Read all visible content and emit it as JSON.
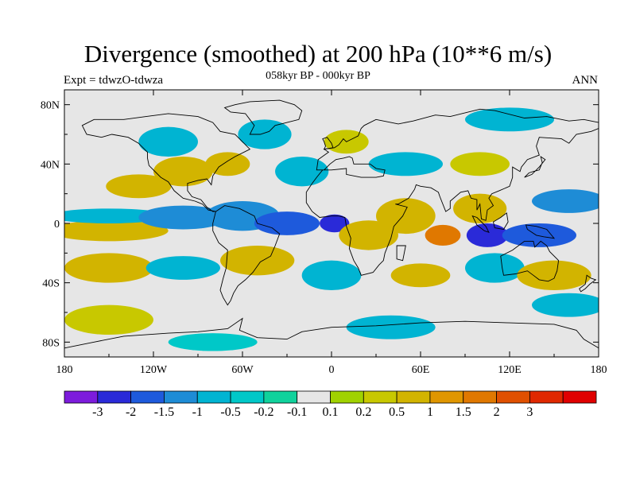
{
  "title": "Divergence (smoothed) at 200 hPa (10**6 m/s)",
  "subtitle": "058kyr BP - 000kyr BP",
  "experiment": "Expt = tdwzO-tdwza",
  "season": "ANN",
  "map": {
    "projection": "cylindrical equidistant",
    "lon_range": [
      -180,
      180
    ],
    "lat_range": [
      -90,
      90
    ],
    "land_background": "#e6e6e6",
    "coastlines": true,
    "lat_ticks": [
      {
        "value": 80,
        "label": "80N"
      },
      {
        "value": 40,
        "label": "40N"
      },
      {
        "value": 0,
        "label": "0"
      },
      {
        "value": -40,
        "label": "40S"
      },
      {
        "value": -80,
        "label": "80S"
      }
    ],
    "lon_ticks": [
      {
        "value": -180,
        "label": "180"
      },
      {
        "value": -120,
        "label": "120W"
      },
      {
        "value": -60,
        "label": "60W"
      },
      {
        "value": 0,
        "label": "0"
      },
      {
        "value": 60,
        "label": "60E"
      },
      {
        "value": 120,
        "label": "120E"
      },
      {
        "value": 180,
        "label": "180"
      }
    ]
  },
  "colorbar": {
    "colors": [
      "#7d1cdc",
      "#2a2ad8",
      "#1e5adc",
      "#1e8cd6",
      "#00b4d2",
      "#00c8c8",
      "#10d29c",
      "#e6e6e6",
      "#a0d200",
      "#c8c800",
      "#d2b400",
      "#e09600",
      "#e07800",
      "#e05000",
      "#e02800",
      "#e00000"
    ],
    "labels": [
      "-3",
      "-2",
      "-1.5",
      "-1",
      "-0.5",
      "-0.2",
      "-0.1",
      "0.1",
      "0.2",
      "0.5",
      "1",
      "1.5",
      "2",
      "3"
    ]
  },
  "chart_data": {
    "type": "heatmap",
    "variable": "Divergence (smoothed) at 200 hPa",
    "units": "10**6 m/s",
    "levels": [
      -3,
      -2,
      -1.5,
      -1,
      -0.5,
      -0.2,
      -0.1,
      0.1,
      0.2,
      0.5,
      1,
      1.5,
      2,
      3
    ],
    "features": [
      {
        "lon": -150,
        "lat": -5,
        "value": 1.0,
        "rlon": 40,
        "rlat": 7
      },
      {
        "lon": -150,
        "lat": 5,
        "value": -0.8,
        "rlon": 40,
        "rlat": 5
      },
      {
        "lon": -100,
        "lat": 4,
        "value": -1.2,
        "rlon": 30,
        "rlat": 8
      },
      {
        "lon": -60,
        "lat": 5,
        "value": -1.0,
        "rlon": 25,
        "rlat": 10
      },
      {
        "lon": -30,
        "lat": 0,
        "value": -1.5,
        "rlon": 22,
        "rlat": 8
      },
      {
        "lon": 2,
        "lat": 0,
        "value": -2.5,
        "rlon": 10,
        "rlat": 6
      },
      {
        "lon": 25,
        "lat": -8,
        "value": 0.7,
        "rlon": 20,
        "rlat": 10
      },
      {
        "lon": 50,
        "lat": 5,
        "value": 0.6,
        "rlon": 20,
        "rlat": 12
      },
      {
        "lon": 75,
        "lat": -8,
        "value": 2.0,
        "rlon": 12,
        "rlat": 7
      },
      {
        "lon": 105,
        "lat": -8,
        "value": -2.5,
        "rlon": 14,
        "rlat": 8
      },
      {
        "lon": 100,
        "lat": 10,
        "value": 0.8,
        "rlon": 18,
        "rlat": 10
      },
      {
        "lon": 140,
        "lat": -8,
        "value": -1.5,
        "rlon": 25,
        "rlat": 8
      },
      {
        "lon": 160,
        "lat": 15,
        "value": -1.0,
        "rlon": 25,
        "rlat": 8
      },
      {
        "lon": -130,
        "lat": 25,
        "value": 0.6,
        "rlon": 22,
        "rlat": 8
      },
      {
        "lon": -100,
        "lat": 35,
        "value": 0.8,
        "rlon": 20,
        "rlat": 10
      },
      {
        "lon": -70,
        "lat": 40,
        "value": 0.7,
        "rlon": 15,
        "rlat": 8
      },
      {
        "lon": -110,
        "lat": 55,
        "value": -0.9,
        "rlon": 20,
        "rlat": 10
      },
      {
        "lon": -45,
        "lat": 60,
        "value": -0.7,
        "rlon": 18,
        "rlat": 10
      },
      {
        "lon": -20,
        "lat": 35,
        "value": -0.6,
        "rlon": 18,
        "rlat": 10
      },
      {
        "lon": 10,
        "lat": 55,
        "value": 0.5,
        "rlon": 15,
        "rlat": 8
      },
      {
        "lon": 50,
        "lat": 40,
        "value": -0.6,
        "rlon": 25,
        "rlat": 8
      },
      {
        "lon": 100,
        "lat": 40,
        "value": 0.4,
        "rlon": 20,
        "rlat": 8
      },
      {
        "lon": 120,
        "lat": 70,
        "value": -0.5,
        "rlon": 30,
        "rlat": 8
      },
      {
        "lon": -150,
        "lat": -30,
        "value": 0.7,
        "rlon": 30,
        "rlat": 10
      },
      {
        "lon": -100,
        "lat": -30,
        "value": -0.7,
        "rlon": 25,
        "rlat": 8
      },
      {
        "lon": -50,
        "lat": -25,
        "value": 0.8,
        "rlon": 25,
        "rlat": 10
      },
      {
        "lon": 0,
        "lat": -35,
        "value": -0.6,
        "rlon": 20,
        "rlat": 10
      },
      {
        "lon": 60,
        "lat": -35,
        "value": 0.7,
        "rlon": 20,
        "rlat": 8
      },
      {
        "lon": 110,
        "lat": -30,
        "value": -0.6,
        "rlon": 20,
        "rlat": 10
      },
      {
        "lon": 150,
        "lat": -35,
        "value": 0.6,
        "rlon": 25,
        "rlat": 10
      },
      {
        "lon": 160,
        "lat": -55,
        "value": -0.6,
        "rlon": 25,
        "rlat": 8
      },
      {
        "lon": -150,
        "lat": -65,
        "value": 0.5,
        "rlon": 30,
        "rlat": 10
      },
      {
        "lon": -80,
        "lat": -80,
        "value": -0.4,
        "rlon": 30,
        "rlat": 6
      },
      {
        "lon": 40,
        "lat": -70,
        "value": -0.5,
        "rlon": 30,
        "rlat": 8
      }
    ]
  }
}
